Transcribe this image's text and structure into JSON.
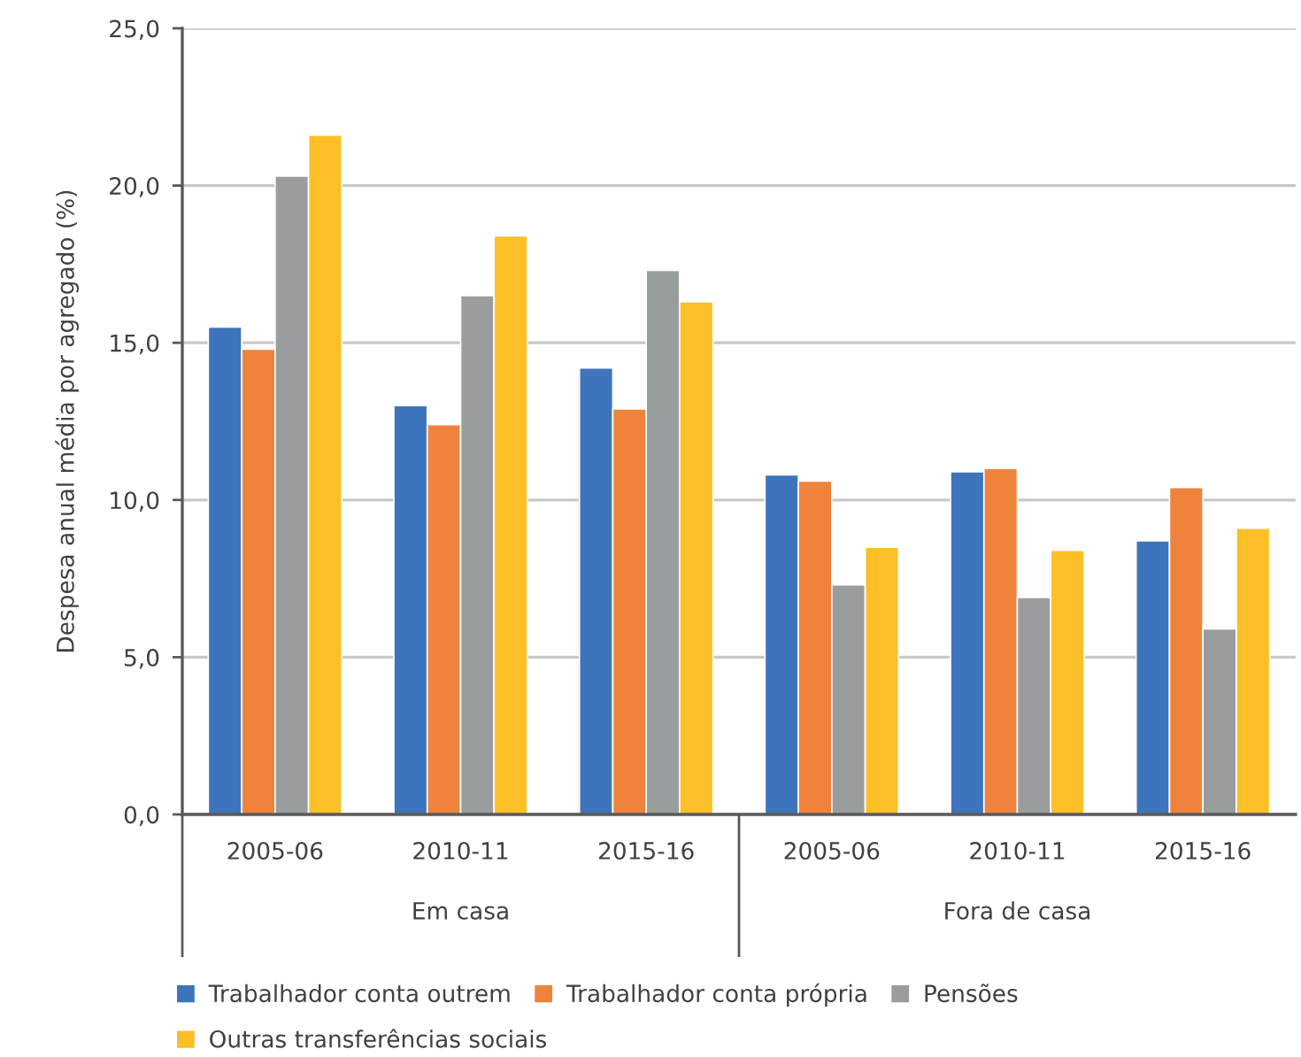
{
  "chart_data": {
    "type": "bar",
    "ylabel": "Despesa anual média por agregado (%)",
    "categories": [
      "2005-06",
      "2010-11",
      "2015-16",
      "2005-06",
      "2010-11",
      "2015-16"
    ],
    "annotations": [
      "Em casa",
      "Fora de casa"
    ],
    "series": [
      {
        "name": "Trabalhador conta outrem",
        "color": "#3e74bb",
        "values": [
          15.5,
          13.0,
          14.2,
          10.8,
          10.9,
          8.7
        ]
      },
      {
        "name": "Trabalhador conta própria",
        "color": "#f0833c",
        "values": [
          14.8,
          12.4,
          12.9,
          10.6,
          11.0,
          10.4
        ]
      },
      {
        "name": "Pensões",
        "color": "#9a9d9e",
        "values": [
          20.3,
          16.5,
          17.3,
          7.3,
          6.9,
          5.9
        ]
      },
      {
        "name": "Outras transferências sociais",
        "color": "#fdbf27",
        "values": [
          21.6,
          18.4,
          16.3,
          8.5,
          8.4,
          9.1
        ]
      }
    ],
    "ylim": [
      0,
      25
    ],
    "yticks": [
      {
        "value": 0,
        "label": "0,0"
      },
      {
        "value": 5,
        "label": "5,0"
      },
      {
        "value": 10,
        "label": "10,0"
      },
      {
        "value": 15,
        "label": "15,0"
      },
      {
        "value": 20,
        "label": "20,0"
      },
      {
        "value": 25,
        "label": "25,0"
      }
    ],
    "grid": "y",
    "legend": "bottom"
  }
}
